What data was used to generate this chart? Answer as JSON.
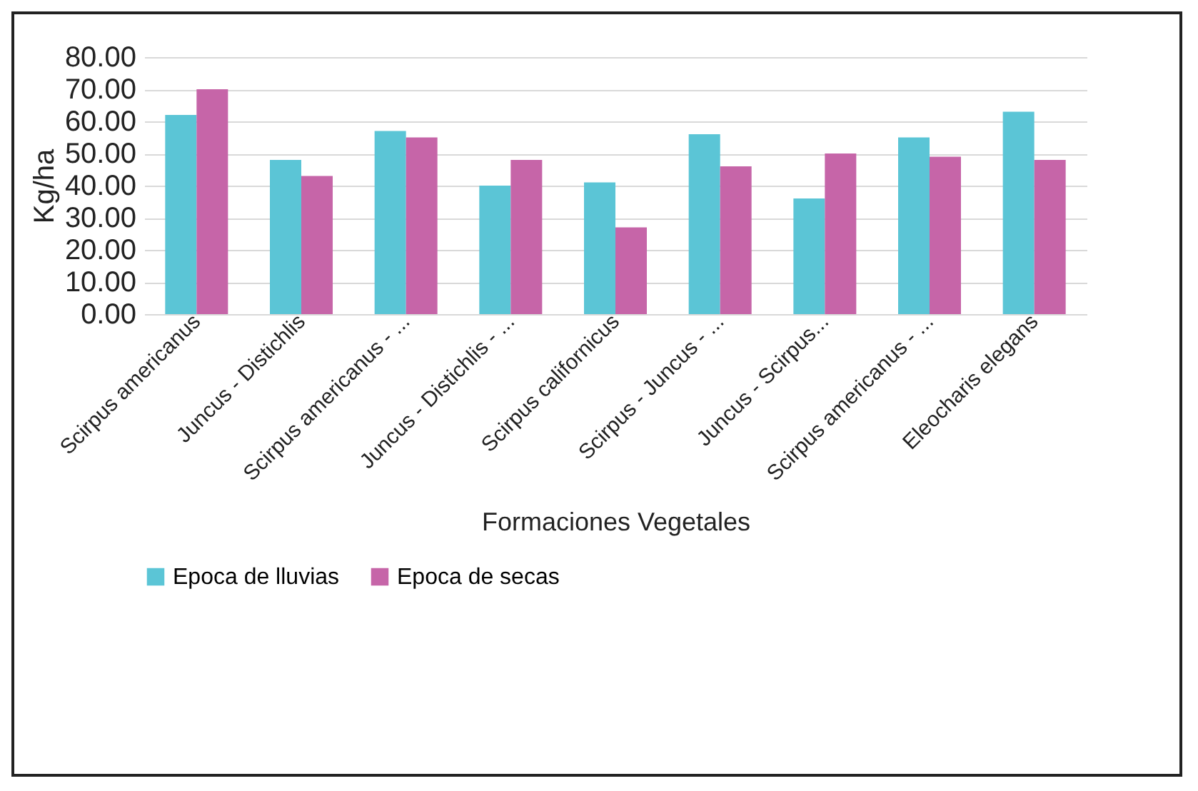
{
  "chart_data": {
    "type": "bar",
    "xlabel": "Formaciones Vegetales",
    "ylabel": "Kg/ha",
    "categories": [
      "Scirpus americanus",
      "Juncus - Distichlis",
      "Scirpus americanus - ...",
      "Juncus - Distichlis - ...",
      "Scirpus californicus",
      "Scirpus - Juncus - ...",
      "Juncus - Scirpus...",
      "Scirpus americanus - ...",
      "Eleocharis elegans"
    ],
    "series": [
      {
        "name": "Epoca de lluvias",
        "color": "#5bc5d6",
        "values": [
          62,
          48,
          57,
          40,
          41,
          56,
          36,
          55,
          63
        ]
      },
      {
        "name": "Epoca de secas",
        "color": "#c665a8",
        "values": [
          70,
          43,
          55,
          48,
          27,
          46,
          50,
          49,
          48
        ]
      }
    ],
    "ylim": [
      0,
      80
    ],
    "yticks": [
      {
        "value": 0,
        "label": "0.00"
      },
      {
        "value": 10,
        "label": "10.00"
      },
      {
        "value": 20,
        "label": "20.00"
      },
      {
        "value": 30,
        "label": "30.00"
      },
      {
        "value": 40,
        "label": "40.00"
      },
      {
        "value": 50,
        "label": "50.00"
      },
      {
        "value": 60,
        "label": "60.00"
      },
      {
        "value": 70,
        "label": "70.00"
      },
      {
        "value": 80,
        "label": "80.00"
      }
    ],
    "grid": "y",
    "legend": "bottom"
  }
}
